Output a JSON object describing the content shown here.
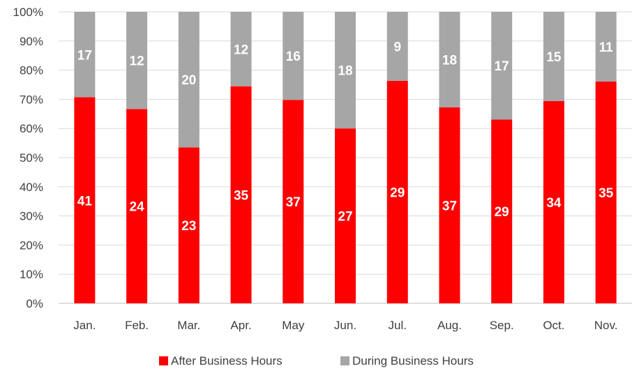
{
  "chart_data": {
    "type": "bar",
    "stacked": "percent",
    "categories": [
      "Jan.",
      "Feb.",
      "Mar.",
      "Apr.",
      "May",
      "Jun.",
      "Jul.",
      "Aug.",
      "Sep.",
      "Oct.",
      "Nov."
    ],
    "series": [
      {
        "name": "After Business Hours",
        "color": "#FF0000",
        "values": [
          41,
          24,
          23,
          35,
          37,
          27,
          29,
          37,
          29,
          34,
          35
        ]
      },
      {
        "name": "During Business Hours",
        "color": "#A6A6A6",
        "values": [
          17,
          12,
          20,
          12,
          16,
          18,
          9,
          18,
          17,
          15,
          11
        ]
      }
    ],
    "yticks": [
      "0%",
      "10%",
      "20%",
      "30%",
      "40%",
      "50%",
      "60%",
      "70%",
      "80%",
      "90%",
      "100%"
    ],
    "ylim": [
      0,
      100
    ],
    "grid": true,
    "legend": "bottom-center"
  }
}
